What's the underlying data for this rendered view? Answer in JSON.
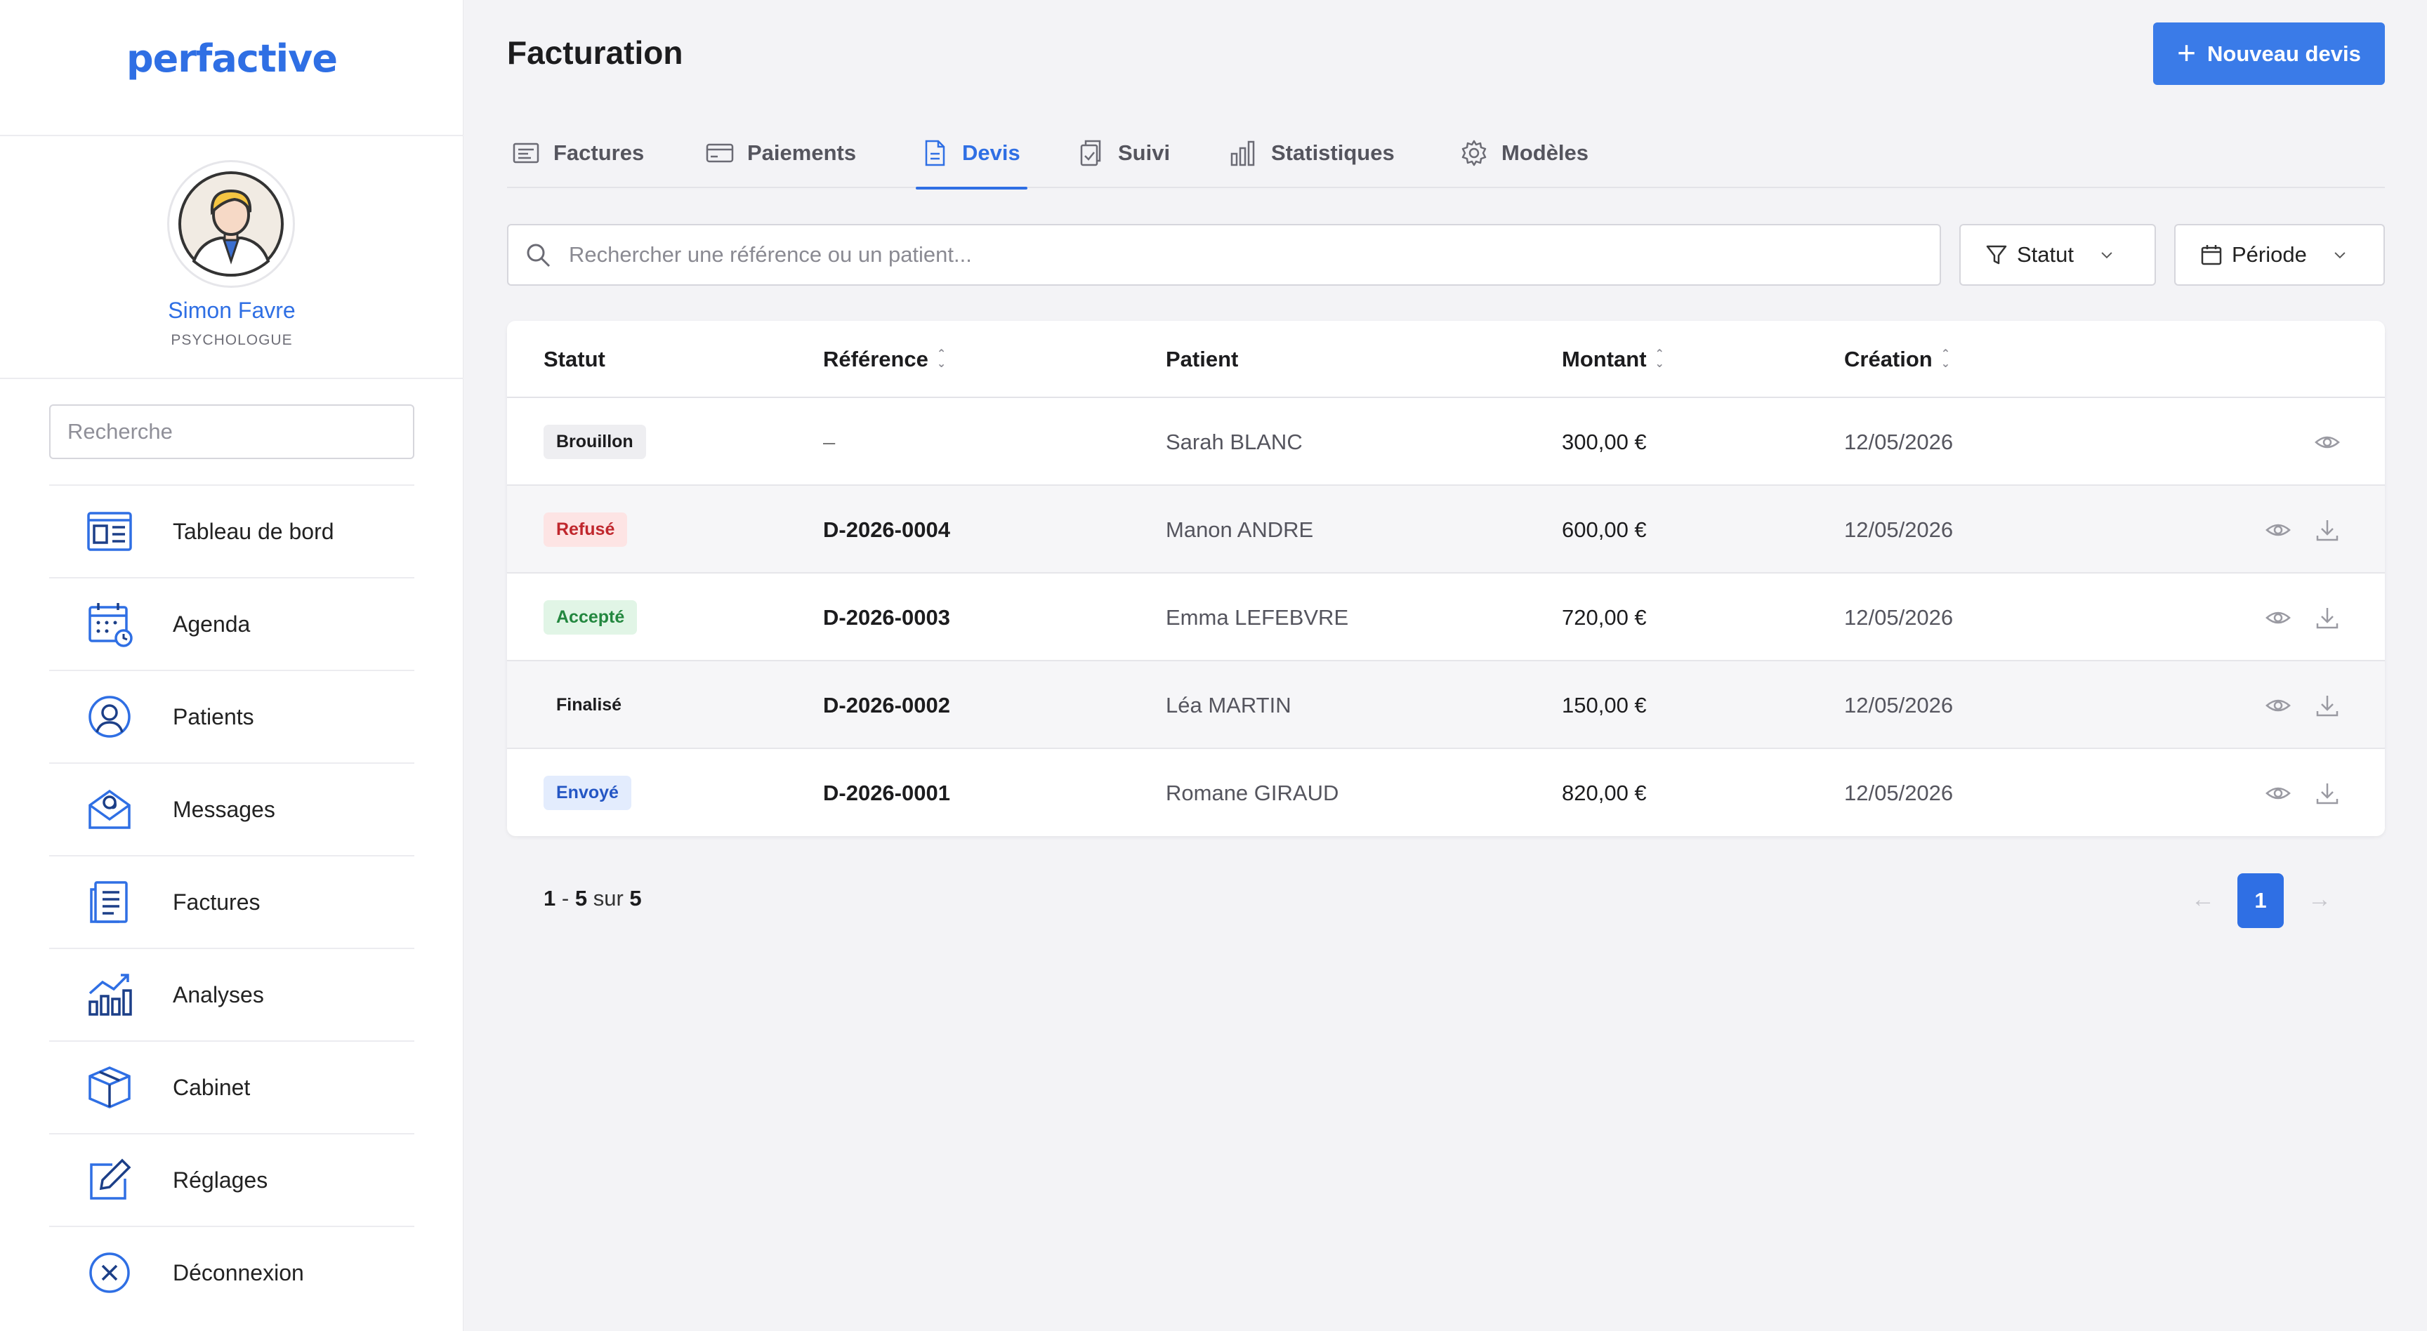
{
  "app": {
    "logo": "perfactive"
  },
  "user": {
    "name": "Simon Favre",
    "role": "PSYCHOLOGUE"
  },
  "sidebar": {
    "search_placeholder": "Recherche",
    "items": [
      {
        "label": "Tableau de bord",
        "icon": "dashboard-icon"
      },
      {
        "label": "Agenda",
        "icon": "calendar-icon"
      },
      {
        "label": "Patients",
        "icon": "user-icon"
      },
      {
        "label": "Messages",
        "icon": "mail-icon"
      },
      {
        "label": "Factures",
        "icon": "document-icon"
      },
      {
        "label": "Analyses",
        "icon": "chart-icon"
      },
      {
        "label": "Cabinet",
        "icon": "box-icon"
      },
      {
        "label": "Réglages",
        "icon": "edit-icon"
      },
      {
        "label": "Déconnexion",
        "icon": "logout-icon"
      }
    ]
  },
  "header": {
    "title": "Facturation",
    "new_button": "Nouveau devis"
  },
  "tabs": [
    {
      "label": "Factures",
      "active": false
    },
    {
      "label": "Paiements",
      "active": false
    },
    {
      "label": "Devis",
      "active": true
    },
    {
      "label": "Suivi",
      "active": false
    },
    {
      "label": "Statistiques",
      "active": false
    },
    {
      "label": "Modèles",
      "active": false
    }
  ],
  "filters": {
    "search_placeholder": "Rechercher une référence ou un patient...",
    "status_label": "Statut",
    "period_label": "Période"
  },
  "table": {
    "columns": [
      "Statut",
      "Référence",
      "Patient",
      "Montant",
      "Création"
    ],
    "rows": [
      {
        "status": "Brouillon",
        "reference": "–",
        "patient": "Sarah BLANC",
        "amount": "300,00 €",
        "created": "12/05/2026"
      },
      {
        "status": "Refusé",
        "reference": "D-2026-0004",
        "patient": "Manon ANDRE",
        "amount": "600,00 €",
        "created": "12/05/2026"
      },
      {
        "status": "Accepté",
        "reference": "D-2026-0003",
        "patient": "Emma LEFEBVRE",
        "amount": "720,00 €",
        "created": "12/05/2026"
      },
      {
        "status": "Finalisé",
        "reference": "D-2026-0002",
        "patient": "Léa MARTIN",
        "amount": "150,00 €",
        "created": "12/05/2026"
      },
      {
        "status": "Envoyé",
        "reference": "D-2026-0001",
        "patient": "Romane GIRAUD",
        "amount": "820,00 €",
        "created": "12/05/2026"
      }
    ]
  },
  "status_colors": {
    "Brouillon": {
      "bg": "#eeeef1",
      "fg": "#1c1c1e"
    },
    "Refusé": {
      "bg": "#fde4e4",
      "fg": "#c0272d"
    },
    "Accepté": {
      "bg": "#e1f5e6",
      "fg": "#23873f"
    },
    "Finalisé": {
      "bg": "transparent",
      "fg": "#1c1c1e"
    },
    "Envoyé": {
      "bg": "#e3ecfd",
      "fg": "#2456c4"
    }
  },
  "pagination": {
    "from": "1",
    "to": "5",
    "sep": "-",
    "of_label": "sur",
    "total": "5",
    "current_page": "1"
  },
  "colors": {
    "accent": "#2f6fe4",
    "button": "#3a7be8",
    "background": "#f3f3f6"
  }
}
